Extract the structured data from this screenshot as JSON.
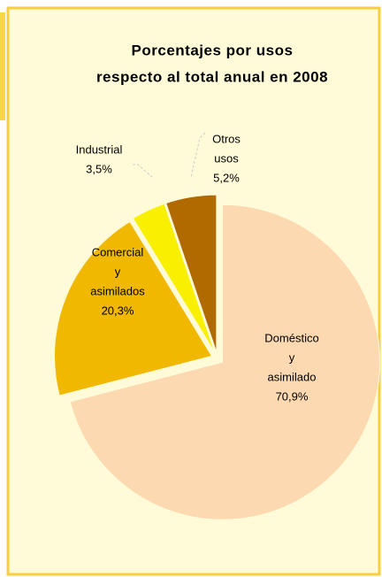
{
  "chart_data": {
    "type": "pie",
    "title": [
      "Porcentajes  por usos",
      "respecto al total anual en 2008"
    ],
    "categories": [
      [
        "Doméstico",
        "y",
        "asimilado"
      ],
      [
        "Comercial",
        "y",
        "asimilados"
      ],
      [
        "Industrial"
      ],
      [
        "Otros",
        "usos"
      ]
    ],
    "values": [
      70.9,
      20.3,
      3.5,
      5.2
    ],
    "value_labels": [
      "70,9%",
      "20,3%",
      "3,5%",
      "5,2%"
    ],
    "colors": [
      "#fcd9b0",
      "#f0b800",
      "#f8f000",
      "#b06a00"
    ]
  }
}
